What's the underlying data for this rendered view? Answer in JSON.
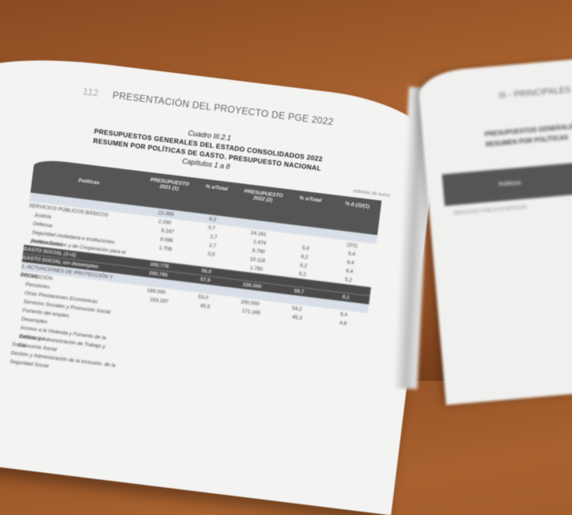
{
  "left_page": {
    "running_header_number": "112",
    "running_header": "PRESENTACIÓN DEL PROYECTO DE PGE 2022",
    "table_number": "Cuadro III.2.1",
    "title_line1": "PRESUPUESTOS GENERALES DEL ESTADO CONSOLIDADOS 2022",
    "title_line2": "RESUMEN POR POLÍTICAS DE GASTO. PRESUPUESTO NACIONAL",
    "subtitle": "Capítulos 1 a 8",
    "unit_note": "millones de euros",
    "columns": [
      {
        "label": "Políticas"
      },
      {
        "label": "PRESUPUESTO 2021 (1)"
      },
      {
        "label": "% s/Total"
      },
      {
        "label": "PRESUPUESTO 2022 (2)"
      },
      {
        "label": "% s/Total"
      },
      {
        "label": "% Δ (2)/(1)"
      }
    ],
    "rows": [
      {
        "label": "",
        "v": [
          "22.369",
          "6,2",
          "",
          "",
          ""
        ],
        "style": "hl"
      },
      {
        "label": "SERVICIOS PÚBLICOS BÁSICOS",
        "v": [
          "2.330",
          "0,7",
          "24.161",
          "",
          "(2/1)"
        ],
        "style": ""
      },
      {
        "label": "Justicia",
        "v": [
          "9.247",
          "2,7",
          "2.474",
          "5,4",
          "5,4"
        ],
        "style": "sub"
      },
      {
        "label": "Defensa",
        "v": [
          "9.086",
          "2,7",
          "9.790",
          "6,2",
          "6,4"
        ],
        "style": "sub"
      },
      {
        "label": "Seguridad ciudadana e Instituciones penitenciarias",
        "v": [
          "1.706",
          "0,5",
          "10.118",
          "6,2",
          "6,4"
        ],
        "style": "sub"
      },
      {
        "label": "Política Exterior y de Cooperación para el Desarrollo",
        "v": [
          "",
          "",
          "1.780",
          "5,2",
          "5,2"
        ],
        "style": "sub"
      },
      {
        "label": "GASTO SOCIAL (1+2)",
        "v": [
          "200.778",
          "56,0",
          "",
          "",
          ""
        ],
        "style": "dark"
      },
      {
        "label": "GASTO SOCIAL sin desempleo",
        "v": [
          "200.785",
          "57,9",
          "226.000",
          "59,7",
          "6,1"
        ],
        "style": "dark"
      },
      {
        "label": "1. ACTUACIONES DE PROTECCIÓN Y PROMOCIÓN",
        "v": [
          "",
          "",
          "",
          "",
          ""
        ],
        "style": "hl"
      },
      {
        "label": "SOCIAL",
        "v": [
          "189.000",
          "53,0",
          "200.000",
          "54,2",
          "6,4"
        ],
        "style": ""
      },
      {
        "label": "Pensiones",
        "v": [
          "163.297",
          "45,5",
          "171.165",
          "45,3",
          "4,8"
        ],
        "style": "sub"
      },
      {
        "label": "Otras Prestaciones Económicas",
        "v": [
          "",
          "",
          "",
          "",
          ""
        ],
        "style": "sub"
      },
      {
        "label": "Servicios Sociales y Promoción Social",
        "v": [
          "",
          "",
          "",
          "",
          ""
        ],
        "style": "sub"
      },
      {
        "label": "Fomento del empleo",
        "v": [
          "",
          "",
          "",
          "",
          ""
        ],
        "style": "sub"
      },
      {
        "label": "Desempleo",
        "v": [
          "",
          "",
          "",
          "",
          ""
        ],
        "style": "sub"
      },
      {
        "label": "Acceso a la Vivienda y Fomento de la Edificación",
        "v": [
          "",
          "",
          "",
          "",
          ""
        ],
        "style": "sub"
      },
      {
        "label": "Gestión y Administración de Trabajo y Economía Social",
        "v": [
          "",
          "",
          "",
          "",
          ""
        ],
        "style": "sub"
      },
      {
        "label": "Social",
        "v": [
          "",
          "",
          "",
          "",
          ""
        ],
        "style": ""
      },
      {
        "label": "Gestión y Administración de la Inclusión, de la Seguridad Social",
        "v": [
          "",
          "",
          "",
          "",
          ""
        ],
        "style": ""
      }
    ]
  },
  "right_page": {
    "running_header": "III - PRINCIPALES",
    "title_line1": "PRESUPUESTOS GENERALES",
    "title_line2": "RESUMEN POR POLÍTICAS",
    "header_col": "Políticas",
    "first_row": "SERVICIOS PÚBLICOS BÁSICOS"
  }
}
